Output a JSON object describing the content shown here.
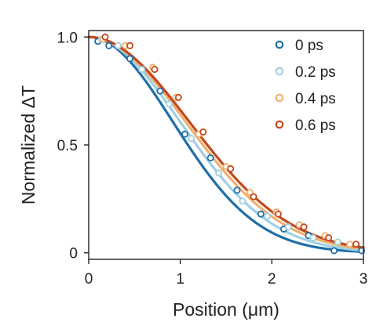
{
  "chart_data": {
    "type": "scatter",
    "xlabel": "Position (μm)",
    "ylabel": "Normalized ΔT",
    "xlim": [
      0,
      3
    ],
    "ylim": [
      -0.03,
      1.03
    ],
    "x_ticks": [
      0,
      1,
      2,
      3
    ],
    "x_tick_labels": [
      "0",
      "1",
      "2",
      "3"
    ],
    "y_ticks": [
      0,
      0.5,
      1.0
    ],
    "y_tick_labels": [
      "0",
      "0.5",
      "1.0"
    ],
    "grid": false,
    "legend_position": "top-right",
    "series": [
      {
        "name": "0 ps",
        "color": "#1f6ea8",
        "fit_sigma": 0.92,
        "x": [
          0.1,
          0.22,
          0.45,
          0.78,
          1.05,
          1.33,
          1.62,
          1.88,
          2.13,
          2.4,
          2.68,
          2.98
        ],
        "y": [
          0.98,
          0.96,
          0.9,
          0.75,
          0.55,
          0.44,
          0.29,
          0.18,
          0.11,
          0.08,
          0.01,
          0.01
        ]
      },
      {
        "name": "0.2 ps",
        "color": "#9fd0e4",
        "fit_sigma": 1.0,
        "x": [
          0.14,
          0.32,
          0.58,
          0.88,
          1.12,
          1.42,
          1.68,
          1.95,
          2.18,
          2.45,
          2.72
        ],
        "y": [
          0.99,
          0.96,
          0.85,
          0.69,
          0.53,
          0.37,
          0.24,
          0.17,
          0.12,
          0.07,
          0.05
        ]
      },
      {
        "name": "0.4 ps",
        "color": "#f0b070",
        "fit_sigma": 1.06,
        "x": [
          0.16,
          0.4,
          0.7,
          0.95,
          1.2,
          1.5,
          1.76,
          2.05,
          2.3,
          2.58,
          2.85
        ],
        "y": [
          0.99,
          0.96,
          0.86,
          0.72,
          0.55,
          0.4,
          0.28,
          0.19,
          0.13,
          0.08,
          0.04
        ]
      },
      {
        "name": "0.6 ps",
        "color": "#c4481c",
        "fit_sigma": 1.1,
        "x": [
          0.18,
          0.45,
          0.72,
          0.98,
          1.25,
          1.55,
          1.8,
          2.07,
          2.35,
          2.62,
          2.92
        ],
        "y": [
          1.0,
          0.96,
          0.85,
          0.72,
          0.56,
          0.39,
          0.26,
          0.18,
          0.12,
          0.07,
          0.04
        ]
      }
    ]
  }
}
